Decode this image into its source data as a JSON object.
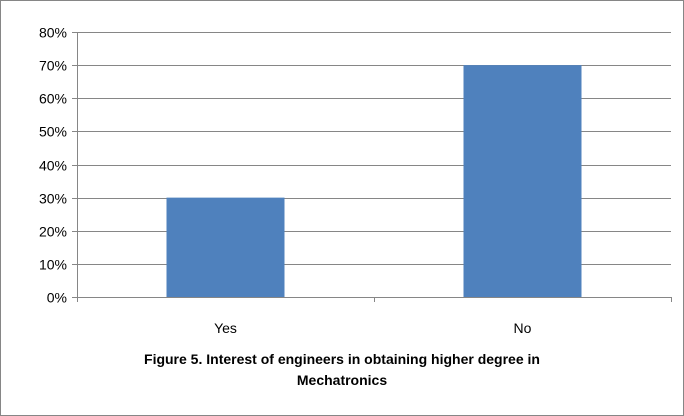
{
  "chart_data": {
    "type": "bar",
    "categories": [
      "Yes",
      "No"
    ],
    "values": [
      0.3,
      0.7
    ],
    "ylim": [
      0,
      0.8
    ],
    "yticks": [
      0,
      0.1,
      0.2,
      0.3,
      0.4,
      0.5,
      0.6,
      0.7,
      0.8
    ],
    "ytick_labels": [
      "0%",
      "10%",
      "20%",
      "30%",
      "40%",
      "50%",
      "60%",
      "70%",
      "80%"
    ],
    "grid": true,
    "legend": "none",
    "bar_color": "#4f81bd"
  },
  "caption": {
    "line1": "Figure 5. Interest of engineers in obtaining  higher degree in",
    "line2": "Mechatronics"
  }
}
